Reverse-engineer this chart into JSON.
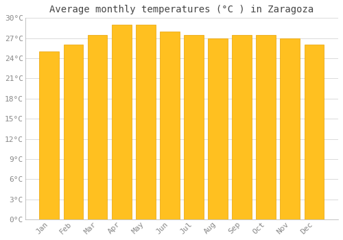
{
  "title": "Average monthly temperatures (°C ) in Zaragoza",
  "months": [
    "Jan",
    "Feb",
    "Mar",
    "Apr",
    "May",
    "Jun",
    "Jul",
    "Aug",
    "Sep",
    "Oct",
    "Nov",
    "Dec"
  ],
  "values": [
    25.0,
    26.0,
    27.5,
    29.0,
    29.0,
    28.0,
    27.5,
    27.0,
    27.5,
    27.5,
    27.0,
    26.0
  ],
  "bar_color": "#FFC020",
  "bar_edge_color": "#E8A000",
  "background_color": "#FFFFFF",
  "grid_color": "#CCCCCC",
  "text_color": "#888888",
  "ylim": [
    0,
    30
  ],
  "yticks": [
    0,
    3,
    6,
    9,
    12,
    15,
    18,
    21,
    24,
    27,
    30
  ],
  "title_fontsize": 10,
  "tick_fontsize": 8,
  "title_font": "monospace",
  "tick_font": "monospace",
  "bar_width": 0.82
}
